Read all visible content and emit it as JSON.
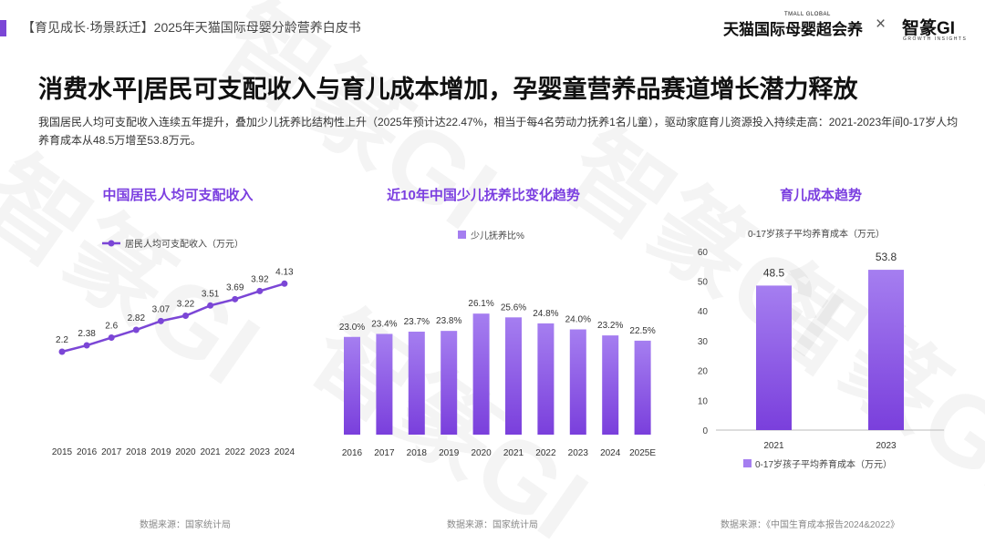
{
  "header": {
    "report_title": "【育见成长·场景跃迁】2025年天猫国际母婴分龄营养白皮书",
    "brand_tmall": "天猫国际母婴超会养",
    "brand_tmall_en": "TMALL GLOBAL",
    "brand_separator": "×",
    "brand_gi": "智篆GI",
    "brand_gi_en": "GROWTH INSIGHTS"
  },
  "main_title": "消费水平|居民可支配收入与育儿成本增加，孕婴童营养品赛道增长潜力释放",
  "description": "我国居民人均可支配收入连续五年提升，叠加少儿抚养比结构性上升（2025年预计达22.47%，相当于每4名劳动力抚养1名儿童），驱动家庭育儿资源投入持续走高：2021-2023年间0-17岁人均养育成本从48.5万增至53.8万元。",
  "colors": {
    "accent": "#7b3fe0",
    "line": "#7b46d6",
    "bar_top": "#a57ef0",
    "bar_bottom": "#7a3fdc",
    "watermark": "#e6e6e6"
  },
  "sources": {
    "income": "数据来源：国家统计局",
    "dependency": "数据来源：国家统计局",
    "cost": "数据来源：《中国生育成本报告2024&2022》"
  },
  "watermark_text": "智篆GI",
  "chart_data": [
    {
      "type": "line",
      "title": "中国居民人均可支配收入",
      "x": [
        "2015",
        "2016",
        "2017",
        "2018",
        "2019",
        "2020",
        "2021",
        "2022",
        "2023",
        "2024"
      ],
      "series": [
        {
          "name": "居民人均可支配收入（万元）",
          "values": [
            2.2,
            2.38,
            2.6,
            2.82,
            3.07,
            3.22,
            3.51,
            3.69,
            3.92,
            4.13
          ]
        }
      ],
      "data_labels": [
        "2.2",
        "2.38",
        "2.6",
        "2.82",
        "3.07",
        "3.22",
        "3.51",
        "3.69",
        "3.92",
        "4.13"
      ],
      "legend_position": "top-left",
      "grid": false
    },
    {
      "type": "bar",
      "title": "近10年中国少儿抚养比变化趋势",
      "categories": [
        "2016",
        "2017",
        "2018",
        "2019",
        "2020",
        "2021",
        "2022",
        "2023",
        "2024",
        "2025E"
      ],
      "series": [
        {
          "name": "少儿抚养比%",
          "values": [
            23.0,
            23.4,
            23.7,
            23.8,
            26.1,
            25.6,
            24.8,
            24.0,
            23.2,
            22.5
          ]
        }
      ],
      "data_labels": [
        "23.0%",
        "23.4%",
        "23.7%",
        "23.8%",
        "26.1%",
        "25.6%",
        "24.8%",
        "24.0%",
        "23.2%",
        "22.5%"
      ],
      "legend_position": "top",
      "grid": false
    },
    {
      "type": "bar",
      "title": "育儿成本趋势",
      "subtitle": "0-17岁孩子平均养育成本（万元）",
      "categories": [
        "2021",
        "2023"
      ],
      "series": [
        {
          "name": "0-17岁孩子平均养育成本（万元）",
          "values": [
            48.5,
            53.8
          ]
        }
      ],
      "data_labels": [
        "48.5",
        "53.8"
      ],
      "yticks": [
        "0",
        "10",
        "20",
        "30",
        "40",
        "50",
        "60"
      ],
      "ylim": [
        0,
        60
      ],
      "legend_position": "bottom",
      "grid": false
    }
  ]
}
